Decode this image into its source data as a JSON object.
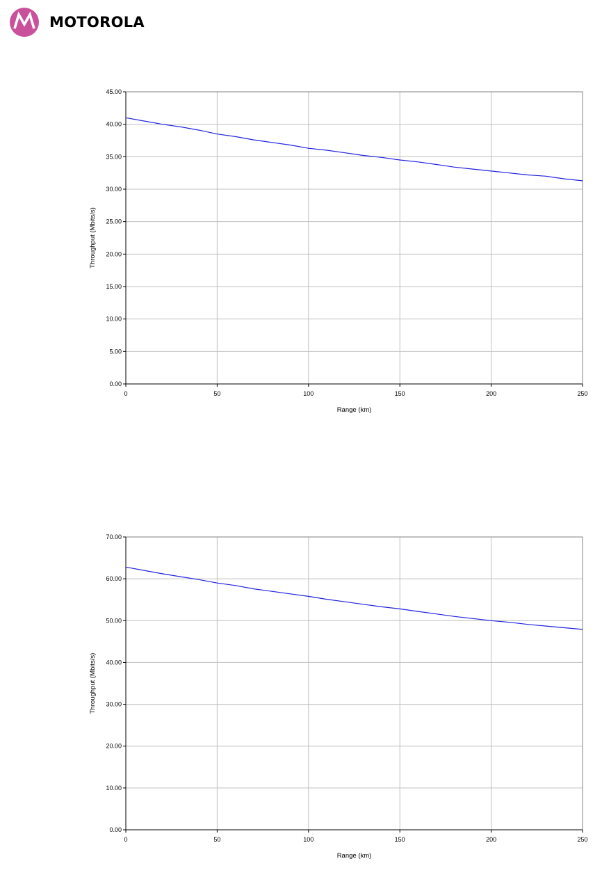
{
  "brand": {
    "name": "MOTOROLA",
    "logo_icon": "motorola-batwing-logo",
    "logo_color": "#c9519b"
  },
  "chart_data": [
    {
      "type": "line",
      "xlabel": "Range (km)",
      "ylabel": "Throughput (Mbits/s)",
      "xlim": [
        0,
        250
      ],
      "ylim": [
        0,
        45
      ],
      "x_ticks": [
        0,
        50,
        100,
        150,
        200,
        250
      ],
      "y_ticks": [
        "0.00",
        "5.00",
        "10.00",
        "15.00",
        "20.00",
        "25.00",
        "30.00",
        "35.00",
        "40.00",
        "45.00"
      ],
      "grid": true,
      "legend": "none",
      "line_color": "#2020e0",
      "series": [
        {
          "x": [
            0,
            10,
            20,
            30,
            40,
            50,
            60,
            70,
            80,
            90,
            100,
            110,
            120,
            130,
            140,
            150,
            160,
            170,
            180,
            190,
            200,
            210,
            220,
            230,
            240,
            250
          ],
          "y": [
            41.0,
            40.5,
            40.0,
            39.6,
            39.1,
            38.5,
            38.1,
            37.6,
            37.2,
            36.8,
            36.3,
            36.0,
            35.6,
            35.2,
            34.9,
            34.5,
            34.2,
            33.8,
            33.4,
            33.1,
            32.8,
            32.5,
            32.2,
            32.0,
            31.6,
            31.3
          ]
        }
      ]
    },
    {
      "type": "line",
      "xlabel": "Range (km)",
      "ylabel": "Throughput (Mbits/s)",
      "xlim": [
        0,
        250
      ],
      "ylim": [
        0,
        70
      ],
      "x_ticks": [
        0,
        50,
        100,
        150,
        200,
        250
      ],
      "y_ticks": [
        "0.00",
        "10.00",
        "20.00",
        "30.00",
        "40.00",
        "50.00",
        "60.00",
        "70.00"
      ],
      "grid": true,
      "legend": "none",
      "line_color": "#2020e0",
      "series": [
        {
          "x": [
            0,
            10,
            20,
            30,
            40,
            50,
            60,
            70,
            80,
            90,
            100,
            110,
            120,
            130,
            140,
            150,
            160,
            170,
            180,
            190,
            200,
            210,
            220,
            230,
            240,
            250
          ],
          "y": [
            62.8,
            62.0,
            61.2,
            60.5,
            59.8,
            59.0,
            58.4,
            57.6,
            57.0,
            56.4,
            55.8,
            55.1,
            54.5,
            53.9,
            53.3,
            52.8,
            52.2,
            51.6,
            51.0,
            50.5,
            50.0,
            49.6,
            49.1,
            48.7,
            48.3,
            47.9
          ]
        }
      ]
    }
  ]
}
